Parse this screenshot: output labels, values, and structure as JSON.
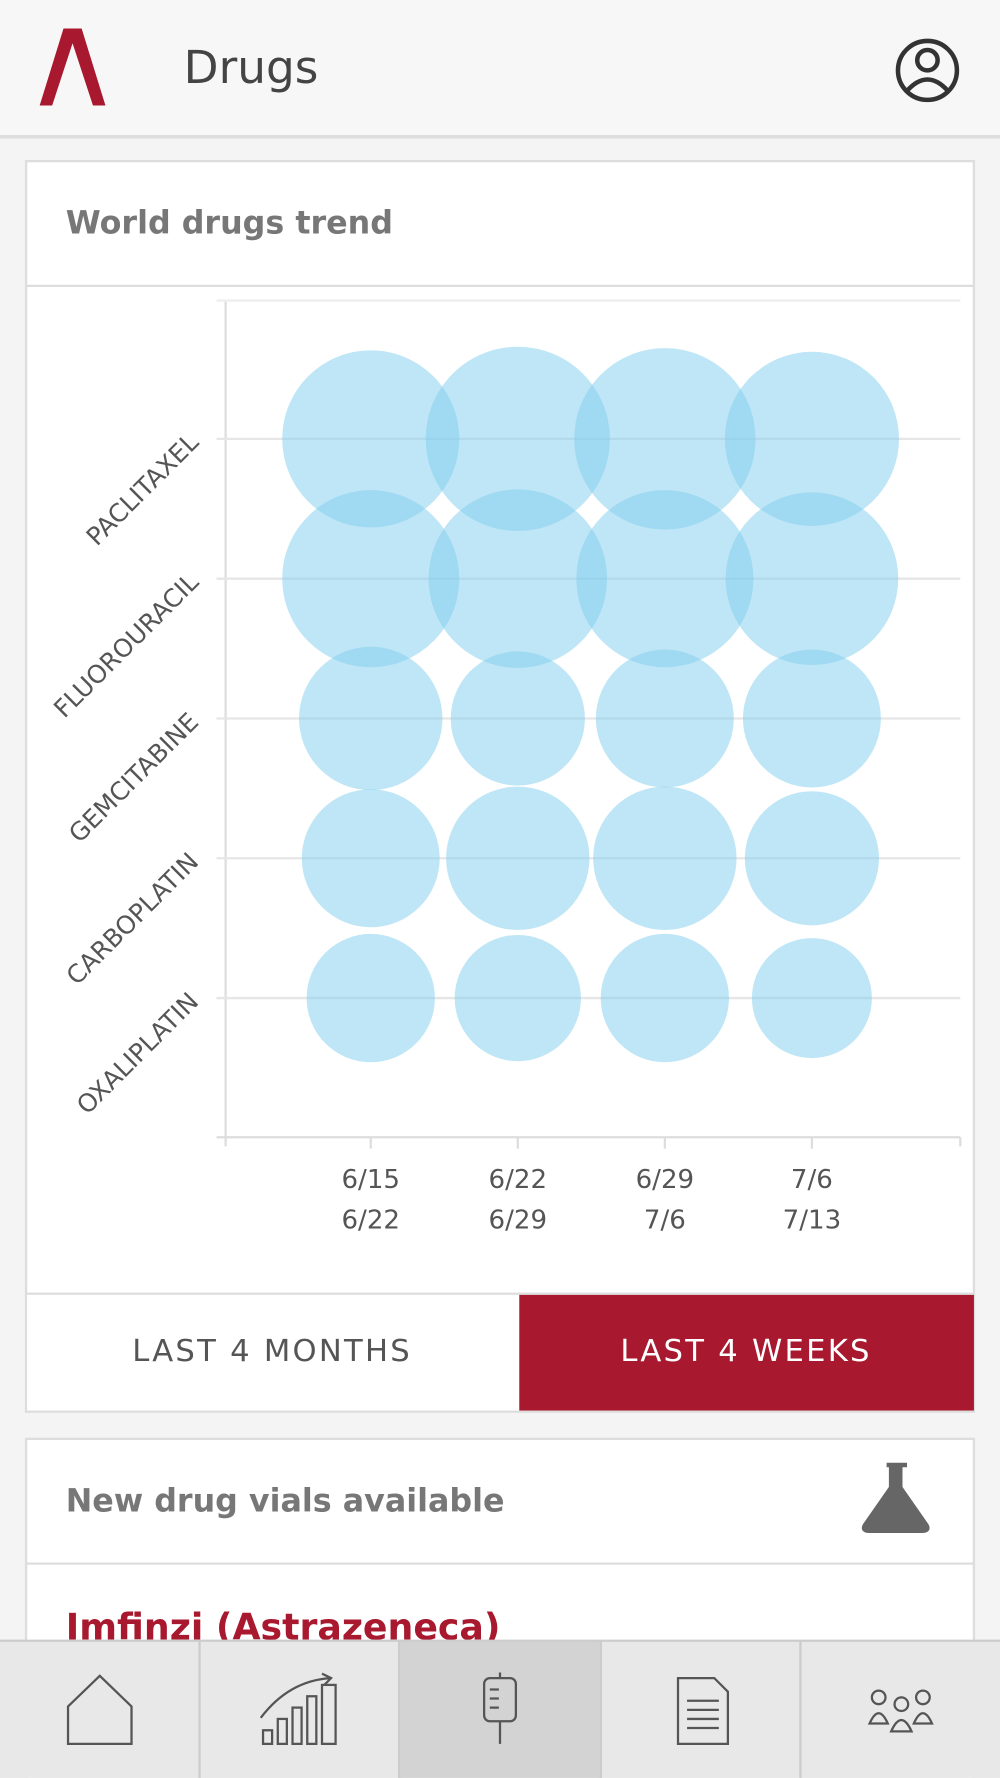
{
  "header": {
    "title": "Drugs"
  },
  "chart_data": {
    "type": "bubble",
    "title": "World drugs trend",
    "categories": [
      "PACLITAXEL",
      "FLUOROURACIL",
      "GEMCITABINE",
      "CARBOPLATIN",
      "OXALIPLATIN"
    ],
    "x": [
      [
        "6/15",
        "6/22"
      ],
      [
        "6/22",
        "6/29"
      ],
      [
        "6/29",
        "7/6"
      ],
      [
        "7/6",
        "7/13"
      ]
    ],
    "color": "#7fcdee",
    "grid": true,
    "series": [
      {
        "sizes": [
          61,
          66,
          64,
          59
        ]
      },
      {
        "sizes": [
          61,
          62,
          61,
          58
        ]
      },
      {
        "sizes": [
          40,
          35,
          37,
          37
        ]
      },
      {
        "sizes": [
          37,
          40,
          40,
          35
        ]
      },
      {
        "sizes": [
          32,
          31,
          32,
          28
        ]
      }
    ]
  },
  "toggles": [
    "LAST 4 MONTHS",
    "LAST 4 WEEKS"
  ],
  "vials": {
    "title": "New drug vials available",
    "items": [
      "Imfinzi (Astrazeneca)"
    ]
  }
}
